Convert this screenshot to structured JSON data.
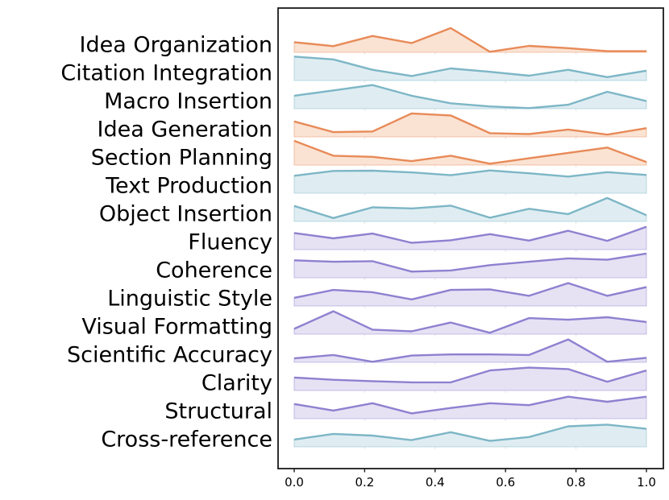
{
  "figure": {
    "background": "#ffffff",
    "frame_color": "#1a1a1a"
  },
  "chart_data": {
    "type": "area",
    "subtype": "ridgeline",
    "title": "",
    "xlabel": "",
    "ylabel": "",
    "legend": "none",
    "grid": false,
    "x_range": [
      0.0,
      1.0
    ],
    "x_tick_labels": [
      "0.0",
      "0.2",
      "0.4",
      "0.6",
      "0.8",
      "1.0"
    ],
    "x_tick_values": [
      0.0,
      0.2,
      0.4,
      0.6,
      0.8,
      1.0
    ],
    "x": [
      0.0,
      0.1111,
      0.2222,
      0.3333,
      0.4444,
      0.5556,
      0.6667,
      0.7778,
      0.8889,
      1.0
    ],
    "value_note": "values are curve heights normalized to one row band (0-1), read from pixels",
    "color_groups": {
      "orange": {
        "line": "#e88a58",
        "fill": "#fae3d3"
      },
      "teal": {
        "line": "#7db6c6",
        "fill": "#dfedf2"
      },
      "purple": {
        "line": "#8f80d0",
        "fill": "#e6e2f4"
      }
    },
    "series": [
      {
        "label": "Idea Organization",
        "slug": "idea-organization",
        "group": "orange",
        "values": [
          0.36,
          0.22,
          0.58,
          0.33,
          0.86,
          0.02,
          0.23,
          0.15,
          0.04,
          0.04
        ]
      },
      {
        "label": "Citation Integration",
        "slug": "citation-integration",
        "group": "teal",
        "values": [
          0.85,
          0.75,
          0.38,
          0.16,
          0.43,
          0.31,
          0.17,
          0.38,
          0.12,
          0.35
        ]
      },
      {
        "label": "Macro Insertion",
        "slug": "macro-insertion",
        "group": "teal",
        "values": [
          0.46,
          0.65,
          0.84,
          0.46,
          0.19,
          0.08,
          0.02,
          0.14,
          0.6,
          0.27
        ]
      },
      {
        "label": "Idea Generation",
        "slug": "idea-generation",
        "group": "orange",
        "values": [
          0.55,
          0.17,
          0.19,
          0.83,
          0.76,
          0.13,
          0.1,
          0.26,
          0.08,
          0.31
        ]
      },
      {
        "label": "Section Planning",
        "slug": "section-planning",
        "group": "orange",
        "values": [
          0.86,
          0.33,
          0.29,
          0.14,
          0.33,
          0.05,
          0.24,
          0.43,
          0.62,
          0.11
        ]
      },
      {
        "label": "Text Production",
        "slug": "text-production",
        "group": "teal",
        "values": [
          0.62,
          0.79,
          0.8,
          0.74,
          0.64,
          0.81,
          0.71,
          0.59,
          0.75,
          0.65
        ]
      },
      {
        "label": "Object Insertion",
        "slug": "object-insertion",
        "group": "teal",
        "values": [
          0.55,
          0.12,
          0.5,
          0.46,
          0.56,
          0.13,
          0.45,
          0.26,
          0.83,
          0.22
        ]
      },
      {
        "label": "Fluency",
        "slug": "fluency",
        "group": "purple",
        "values": [
          0.59,
          0.4,
          0.57,
          0.24,
          0.33,
          0.55,
          0.32,
          0.67,
          0.31,
          0.81
        ]
      },
      {
        "label": "Coherence",
        "slug": "coherence",
        "group": "purple",
        "values": [
          0.62,
          0.57,
          0.59,
          0.22,
          0.26,
          0.45,
          0.57,
          0.69,
          0.64,
          0.86
        ]
      },
      {
        "label": "Linguistic Style",
        "slug": "linguistic-style",
        "group": "purple",
        "values": [
          0.29,
          0.57,
          0.49,
          0.23,
          0.57,
          0.59,
          0.36,
          0.81,
          0.36,
          0.67
        ]
      },
      {
        "label": "Visual Formatting",
        "slug": "visual-formatting",
        "group": "purple",
        "values": [
          0.19,
          0.81,
          0.16,
          0.1,
          0.41,
          0.05,
          0.57,
          0.51,
          0.6,
          0.43
        ]
      },
      {
        "label": "Scientific Accuracy",
        "slug": "scientific-accuracy",
        "group": "purple",
        "values": [
          0.14,
          0.26,
          0.02,
          0.24,
          0.28,
          0.28,
          0.26,
          0.81,
          0.02,
          0.16
        ]
      },
      {
        "label": "Clarity",
        "slug": "clarity",
        "group": "purple",
        "values": [
          0.46,
          0.38,
          0.33,
          0.29,
          0.29,
          0.71,
          0.81,
          0.76,
          0.31,
          0.71
        ]
      },
      {
        "label": "Structural",
        "slug": "structural",
        "group": "purple",
        "values": [
          0.52,
          0.29,
          0.55,
          0.19,
          0.38,
          0.55,
          0.48,
          0.78,
          0.6,
          0.78
        ]
      },
      {
        "label": "Cross-reference",
        "slug": "cross-reference",
        "group": "teal",
        "values": [
          0.26,
          0.46,
          0.4,
          0.24,
          0.52,
          0.21,
          0.35,
          0.73,
          0.79,
          0.64
        ]
      }
    ]
  }
}
